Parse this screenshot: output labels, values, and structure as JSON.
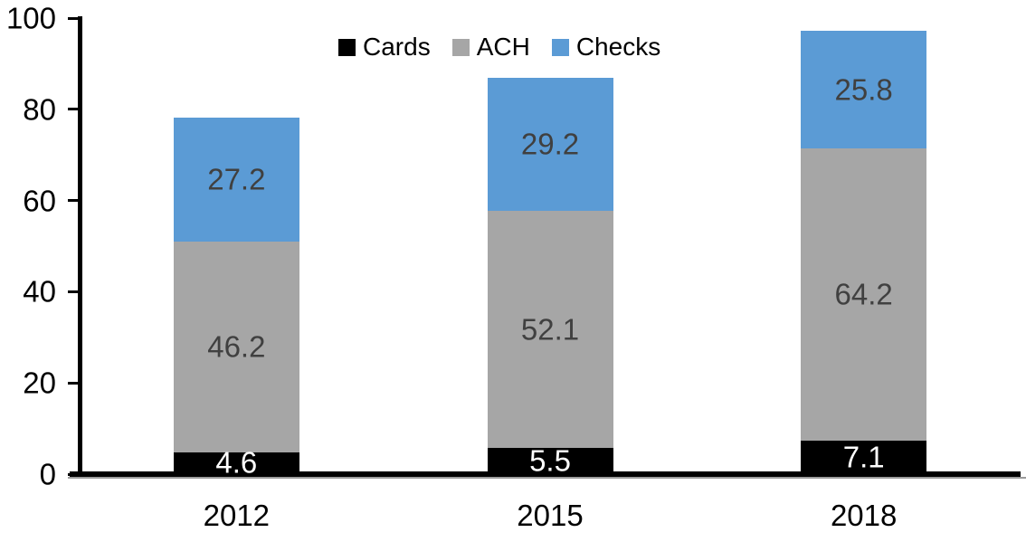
{
  "chart_data": {
    "type": "bar",
    "stacked": true,
    "categories": [
      "2012",
      "2015",
      "2018"
    ],
    "series": [
      {
        "name": "Cards",
        "color": "#000000",
        "label_color": "#ffffff",
        "values": [
          4.6,
          5.5,
          7.1
        ]
      },
      {
        "name": "ACH",
        "color": "#a6a6a6",
        "label_color": "#404040",
        "values": [
          46.2,
          52.1,
          64.2
        ]
      },
      {
        "name": "Checks",
        "color": "#5b9bd5",
        "label_color": "#404040",
        "values": [
          27.2,
          29.2,
          25.8
        ]
      }
    ],
    "totals": [
      78.0,
      86.8,
      97.1
    ],
    "y_axis": {
      "min": 0,
      "max": 100,
      "ticks": [
        0,
        20,
        40,
        60,
        80,
        100
      ]
    },
    "x_axis": {
      "labels": [
        "2012",
        "2015",
        "2018"
      ]
    },
    "legend": {
      "position": "top",
      "entries": [
        "Cards",
        "ACH",
        "Checks"
      ]
    },
    "grid": false,
    "axis_color": "#000000",
    "background_color": "#ffffff"
  }
}
